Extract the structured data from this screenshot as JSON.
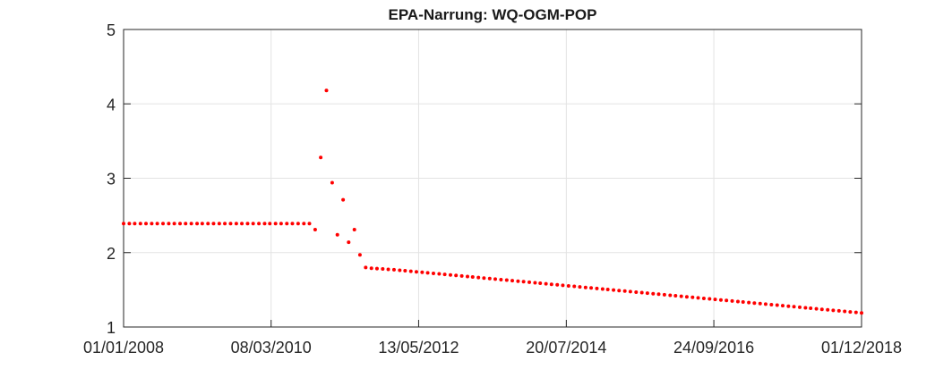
{
  "chart_data": {
    "type": "scatter",
    "title": "EPA-Narrung: WQ-OGM-POP",
    "xlabel": "",
    "ylabel": "",
    "xlim": [
      "2008-01-01",
      "2018-12-01"
    ],
    "ylim": [
      1,
      5
    ],
    "x_ticks": [
      "01/01/2008",
      "08/03/2010",
      "13/05/2012",
      "20/07/2014",
      "24/09/2016",
      "01/12/2018"
    ],
    "y_ticks": [
      "1",
      "2",
      "3",
      "4",
      "5"
    ],
    "grid": true,
    "marker_color": "#ff0000",
    "series": [
      {
        "x": [
          "2008-01-01",
          "2008-02-01",
          "2008-03-01",
          "2008-04-01",
          "2008-05-01",
          "2008-06-01",
          "2008-07-01",
          "2008-08-01",
          "2008-09-01",
          "2008-10-01",
          "2008-11-01",
          "2008-12-01",
          "2009-01-01",
          "2009-02-01",
          "2009-03-01",
          "2009-04-01",
          "2009-05-01",
          "2009-06-01",
          "2009-07-01",
          "2009-08-01",
          "2009-09-01",
          "2009-10-01",
          "2009-11-01",
          "2009-12-01",
          "2010-01-01",
          "2010-02-01",
          "2010-03-01",
          "2010-04-01",
          "2010-05-01",
          "2010-06-01",
          "2010-07-01",
          "2010-08-01",
          "2010-09-01",
          "2010-10-01",
          "2010-11-01",
          "2010-12-01",
          "2011-01-01",
          "2011-02-01",
          "2011-03-01",
          "2011-04-01",
          "2011-05-01",
          "2011-06-01",
          "2011-07-01",
          "2011-08-01",
          "2011-09-01",
          "2011-10-01",
          "2011-11-01",
          "2011-12-01",
          "2012-01-01",
          "2012-02-01",
          "2012-03-01",
          "2012-04-01",
          "2012-05-01",
          "2012-06-01",
          "2012-07-01",
          "2012-08-01",
          "2012-09-01",
          "2012-10-01",
          "2012-11-01",
          "2012-12-01",
          "2013-01-01",
          "2013-02-01",
          "2013-03-01",
          "2013-04-01",
          "2013-05-01",
          "2013-06-01",
          "2013-07-01",
          "2013-08-01",
          "2013-09-01",
          "2013-10-01",
          "2013-11-01",
          "2013-12-01",
          "2014-01-01",
          "2014-02-01",
          "2014-03-01",
          "2014-04-01",
          "2014-05-01",
          "2014-06-01",
          "2014-07-01",
          "2014-08-01",
          "2014-09-01",
          "2014-10-01",
          "2014-11-01",
          "2014-12-01",
          "2015-01-01",
          "2015-02-01",
          "2015-03-01",
          "2015-04-01",
          "2015-05-01",
          "2015-06-01",
          "2015-07-01",
          "2015-08-01",
          "2015-09-01",
          "2015-10-01",
          "2015-11-01",
          "2015-12-01",
          "2016-01-01",
          "2016-02-01",
          "2016-03-01",
          "2016-04-01",
          "2016-05-01",
          "2016-06-01",
          "2016-07-01",
          "2016-08-01",
          "2016-09-01",
          "2016-10-01",
          "2016-11-01",
          "2016-12-01",
          "2017-01-01",
          "2017-02-01",
          "2017-03-01",
          "2017-04-01",
          "2017-05-01",
          "2017-06-01",
          "2017-07-01",
          "2017-08-01",
          "2017-09-01",
          "2017-10-01",
          "2017-11-01",
          "2017-12-01",
          "2018-01-01",
          "2018-02-01",
          "2018-03-01",
          "2018-04-01",
          "2018-05-01",
          "2018-06-01",
          "2018-07-01",
          "2018-08-01",
          "2018-09-01",
          "2018-10-01",
          "2018-11-01",
          "2018-12-01"
        ],
        "y": [
          2.39,
          2.39,
          2.39,
          2.39,
          2.39,
          2.39,
          2.39,
          2.39,
          2.39,
          2.39,
          2.39,
          2.39,
          2.39,
          2.39,
          2.39,
          2.39,
          2.39,
          2.39,
          2.39,
          2.39,
          2.39,
          2.39,
          2.39,
          2.39,
          2.39,
          2.39,
          2.39,
          2.39,
          2.39,
          2.39,
          2.39,
          2.39,
          2.39,
          2.39,
          2.31,
          3.28,
          4.18,
          2.94,
          2.24,
          2.71,
          2.14,
          2.31,
          1.97,
          1.8,
          1.79,
          1.785,
          1.78,
          1.775,
          1.77,
          1.763,
          1.756,
          1.749,
          1.742,
          1.735,
          1.728,
          1.721,
          1.714,
          1.707,
          1.7,
          1.693,
          1.686,
          1.679,
          1.672,
          1.665,
          1.658,
          1.651,
          1.644,
          1.637,
          1.63,
          1.623,
          1.616,
          1.609,
          1.602,
          1.595,
          1.588,
          1.581,
          1.574,
          1.567,
          1.56,
          1.553,
          1.546,
          1.539,
          1.532,
          1.525,
          1.518,
          1.511,
          1.504,
          1.497,
          1.49,
          1.483,
          1.476,
          1.469,
          1.462,
          1.455,
          1.448,
          1.441,
          1.434,
          1.427,
          1.42,
          1.413,
          1.406,
          1.399,
          1.392,
          1.385,
          1.378,
          1.371,
          1.364,
          1.357,
          1.35,
          1.343,
          1.336,
          1.329,
          1.322,
          1.315,
          1.308,
          1.301,
          1.294,
          1.287,
          1.28,
          1.273,
          1.266,
          1.259,
          1.252,
          1.245,
          1.238,
          1.231,
          1.224,
          1.217,
          1.21,
          1.203,
          1.196,
          1.189
        ]
      }
    ]
  }
}
